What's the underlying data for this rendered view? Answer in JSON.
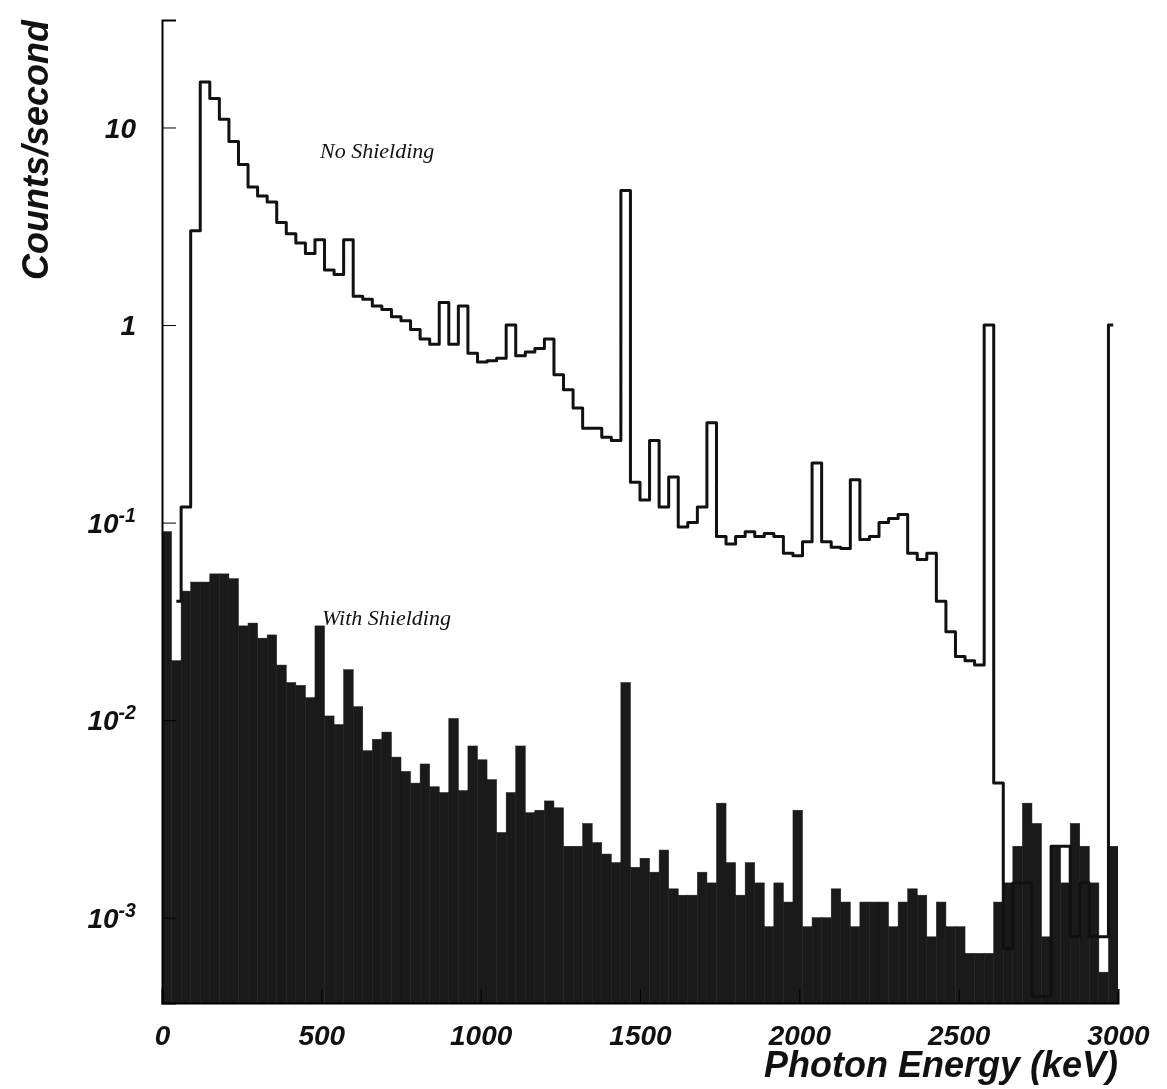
{
  "chart_data": {
    "type": "histogram",
    "xlabel": "Photon Energy (keV)",
    "ylabel": "Counts/second",
    "xlim": [
      0,
      3000
    ],
    "xticks": [
      0,
      500,
      1000,
      1500,
      2000,
      2500,
      3000
    ],
    "ylim": [
      0.00037,
      35
    ],
    "log": "y",
    "yticks": [
      10,
      1,
      {
        "value": 0.1,
        "label": "10$^{-1}$"
      },
      {
        "value": 0.01,
        "label": "10$^{-2}$"
      },
      {
        "value": 0.001,
        "label": "10$^{-3}$"
      }
    ],
    "bins": [
      0,
      30,
      60,
      90,
      120,
      150,
      180,
      210,
      240,
      270,
      300,
      330,
      360,
      390,
      420,
      450,
      480,
      510,
      540,
      570,
      600,
      630,
      660,
      690,
      720,
      750,
      780,
      810,
      840,
      870,
      900,
      930,
      960,
      990,
      1020,
      1050,
      1080,
      1110,
      1140,
      1170,
      1200,
      1230,
      1260,
      1290,
      1320,
      1350,
      1380,
      1410,
      1440,
      1470,
      1500,
      1530,
      1560,
      1590,
      1620,
      1650,
      1680,
      1710,
      1740,
      1770,
      1800,
      1830,
      1860,
      1890,
      1920,
      1950,
      1980,
      2010,
      2040,
      2070,
      2100,
      2130,
      2160,
      2190,
      2220,
      2250,
      2280,
      2310,
      2340,
      2370,
      2400,
      2430,
      2460,
      2490,
      2520,
      2550,
      2580,
      2610,
      2640,
      2670,
      2700,
      2730,
      2760,
      2790,
      2820,
      2850,
      2880,
      2910,
      2940,
      2970,
      3000
    ],
    "series": [
      {
        "name": "No Shielding",
        "type": "step",
        "color": "#111111",
        "x": [
          45,
          75,
          105,
          135,
          165,
          195,
          225,
          255,
          285,
          315,
          345,
          375,
          405,
          435,
          465,
          495,
          525,
          555,
          585,
          615,
          645,
          675,
          705,
          735,
          765,
          795,
          825,
          855,
          885,
          915,
          945,
          975,
          1005,
          1035,
          1065,
          1095,
          1125,
          1155,
          1185,
          1215,
          1245,
          1275,
          1305,
          1335,
          1365,
          1395,
          1425,
          1455,
          1485,
          1515,
          1545,
          1575,
          1605,
          1635,
          1665,
          1695,
          1725,
          1755,
          1785,
          1815,
          1845,
          1875,
          1905,
          1935,
          1965,
          1995,
          2025,
          2055,
          2085,
          2115,
          2145,
          2175,
          2205,
          2235,
          2265,
          2295,
          2325,
          2355,
          2385,
          2415,
          2445,
          2475,
          2505,
          2535,
          2565,
          2595,
          2625,
          2655,
          2685,
          2715,
          2745,
          2775,
          2805,
          2835,
          2865,
          2895,
          2925,
          2955,
          2985
        ],
        "values": [
          0.04,
          0.12,
          3,
          17,
          14,
          11,
          8.5,
          6.5,
          5,
          4.5,
          4.2,
          3.3,
          2.9,
          2.6,
          2.3,
          2.7,
          1.9,
          1.8,
          2.7,
          1.4,
          1.35,
          1.25,
          1.2,
          1.1,
          1.05,
          0.95,
          0.85,
          0.8,
          1.3,
          0.8,
          1.25,
          0.72,
          0.65,
          0.66,
          0.68,
          1,
          0.7,
          0.73,
          0.76,
          0.85,
          0.56,
          0.47,
          0.38,
          0.3,
          0.3,
          0.27,
          0.26,
          4.8,
          0.16,
          0.13,
          0.26,
          0.12,
          0.17,
          0.095,
          0.1,
          0.12,
          0.32,
          0.085,
          0.078,
          0.085,
          0.09,
          0.085,
          0.088,
          0.085,
          0.07,
          0.068,
          0.08,
          0.2,
          0.08,
          0.075,
          0.074,
          0.165,
          0.082,
          0.085,
          0.1,
          0.105,
          0.11,
          0.07,
          0.065,
          0.07,
          0.04,
          0.028,
          0.021,
          0.02,
          0.019,
          1,
          0.0048,
          0.0007,
          0.0015,
          0.0015,
          0.0004,
          0.0004,
          0.0023,
          0.0023,
          0.0008,
          0.0015,
          0.0008,
          0.0008,
          1
        ]
      },
      {
        "name": "With Shielding",
        "type": "histogram",
        "color": "#1a1a1a",
        "values": [
          0.09,
          0.02,
          0.045,
          0.05,
          0.05,
          0.055,
          0.055,
          0.052,
          0.03,
          0.031,
          0.026,
          0.027,
          0.019,
          0.0155,
          0.015,
          0.013,
          0.03,
          0.0105,
          0.0095,
          0.018,
          0.0117,
          0.007,
          0.008,
          0.0087,
          0.0065,
          0.0055,
          0.0048,
          0.006,
          0.0046,
          0.0043,
          0.0102,
          0.0044,
          0.0074,
          0.0063,
          0.005,
          0.0027,
          0.0043,
          0.0074,
          0.0034,
          0.0035,
          0.0039,
          0.0036,
          0.0023,
          0.0023,
          0.003,
          0.0024,
          0.0021,
          0.0019,
          0.0155,
          0.0018,
          0.002,
          0.0017,
          0.0022,
          0.0014,
          0.0013,
          0.0013,
          0.0017,
          0.0015,
          0.0038,
          0.0019,
          0.0013,
          0.0019,
          0.0015,
          0.0009,
          0.0015,
          0.0012,
          0.0035,
          0.0009,
          0.001,
          0.001,
          0.0014,
          0.0012,
          0.0009,
          0.0012,
          0.0012,
          0.0012,
          0.0009,
          0.0012,
          0.0014,
          0.0013,
          0.0008,
          0.0012,
          0.0009,
          0.0009,
          0.00066,
          0.00066,
          0.00066,
          0.0012,
          0.0015,
          0.0023,
          0.0038,
          0.003,
          0.0008,
          0.0023,
          0.0015,
          0.003,
          0.0023,
          0.0015,
          0.00053,
          0.0023
        ]
      }
    ]
  }
}
